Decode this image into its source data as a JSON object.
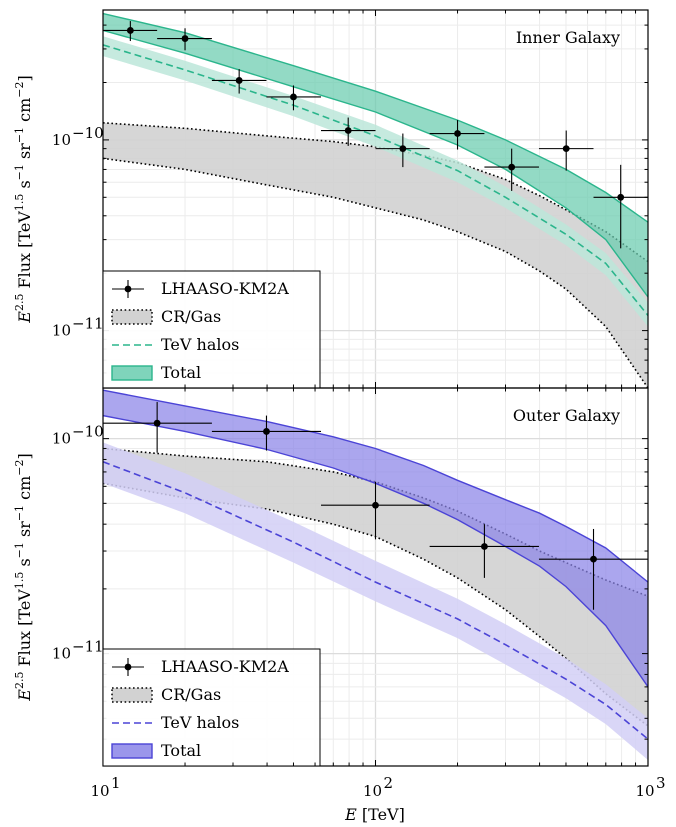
{
  "chart_data": [
    {
      "type": "line",
      "title": "Inner Galaxy",
      "xlabel": "E [TeV]",
      "ylabel": "E^2.5 Flux [TeV^1.5 s^-1 sr^-1 cm^-2]",
      "xscale": "log",
      "yscale": "log",
      "xlim": [
        10,
        1000
      ],
      "ylim": [
        5e-12,
        4.8e-10
      ],
      "grid": true,
      "legend_position": "lower-left",
      "colors": {
        "fill": "#69CCAF",
        "edge": "#2BB58C",
        "halo_band": "#BCE6D9",
        "crgas_fill": "#D2D2D2"
      },
      "legend": [
        "LHAASO-KM2A",
        "CR/Gas",
        "TeV halos",
        "Total"
      ],
      "data_points": {
        "name": "LHAASO-KM2A",
        "x": [
          12.6,
          20,
          31.6,
          50,
          79.4,
          126,
          200,
          316,
          501,
          794
        ],
        "y": [
          3.75e-10,
          3.4e-10,
          2.05e-10,
          1.68e-10,
          1.12e-10,
          9e-11,
          1.08e-10,
          7.2e-11,
          9e-11,
          5e-11
        ],
        "x_lo": [
          10,
          15.8,
          25.1,
          39.8,
          63.1,
          100,
          158,
          251,
          398,
          631
        ],
        "x_hi": [
          15.8,
          25.1,
          39.8,
          63.1,
          100,
          158,
          251,
          398,
          631,
          1000
        ],
        "y_lo": [
          3.3e-10,
          2.95e-10,
          1.75e-10,
          1.43e-10,
          9.3e-11,
          7.2e-11,
          8.9e-11,
          5.4e-11,
          6.9e-11,
          2.7e-11
        ],
        "y_hi": [
          4.2e-10,
          3.85e-10,
          2.35e-10,
          1.93e-10,
          1.31e-10,
          1.08e-10,
          1.27e-10,
          9e-11,
          1.12e-10,
          7.4e-11
        ]
      },
      "cr_gas_band": {
        "name": "CR/Gas",
        "x": [
          10,
          20,
          40,
          70,
          100,
          150,
          200,
          300,
          400,
          500,
          700,
          1000
        ],
        "upper": [
          1.23e-10,
          1.15e-10,
          1.05e-10,
          9.8e-11,
          9.2e-11,
          8.3e-11,
          7.6e-11,
          6.2e-11,
          5.1e-11,
          4.3e-11,
          3.3e-11,
          2.3e-11
        ],
        "lower": [
          8e-11,
          7e-11,
          5.8e-11,
          5e-11,
          4.4e-11,
          3.8e-11,
          3.3e-11,
          2.6e-11,
          2.05e-11,
          1.65e-11,
          1.05e-11,
          5e-12
        ]
      },
      "tev_halos": {
        "name": "TeV halos",
        "x": [
          10,
          20,
          50,
          100,
          200,
          300,
          500,
          700,
          1000
        ],
        "y": [
          3.15e-10,
          2.33e-10,
          1.52e-10,
          1.05e-10,
          6.9e-11,
          5e-11,
          3.2e-11,
          2.25e-11,
          1.2e-11
        ],
        "upper": [
          3.5e-10,
          2.6e-10,
          1.7e-10,
          1.2e-10,
          7.8e-11,
          5.7e-11,
          3.6e-11,
          2.55e-11,
          1.4e-11
        ],
        "lower": [
          2.75e-10,
          2.05e-10,
          1.33e-10,
          9.2e-11,
          6e-11,
          4.4e-11,
          2.8e-11,
          1.95e-11,
          1.05e-11
        ]
      },
      "total_band": {
        "name": "Total",
        "x": [
          10,
          20,
          50,
          100,
          200,
          300,
          500,
          700,
          1000
        ],
        "upper": [
          4.6e-10,
          3.65e-10,
          2.45e-10,
          1.8e-10,
          1.27e-10,
          1e-10,
          7e-11,
          5.3e-11,
          3.7e-11
        ],
        "lower": [
          3.75e-10,
          2.85e-10,
          1.9e-10,
          1.4e-10,
          9.4e-11,
          7e-11,
          4.4e-11,
          3e-11,
          1.5e-11
        ]
      }
    },
    {
      "type": "line",
      "title": "Outer Galaxy",
      "xlabel": "E [TeV]",
      "ylabel": "E^2.5 Flux [TeV^1.5 s^-1 sr^-1 cm^-2]",
      "xscale": "log",
      "yscale": "log",
      "xlim": [
        10,
        1000
      ],
      "ylim": [
        3e-12,
        1.72e-10
      ],
      "grid": true,
      "legend_position": "lower-left",
      "colors": {
        "fill": "#8A84E8",
        "edge": "#4B44D6",
        "halo_band": "#D2CFF6",
        "crgas_fill": "#D2D2D2"
      },
      "legend": [
        "LHAASO-KM2A",
        "CR/Gas",
        "TeV halos",
        "Total"
      ],
      "data_points": {
        "name": "LHAASO-KM2A",
        "x": [
          15.8,
          39.8,
          100,
          251,
          631
        ],
        "y": [
          1.18e-10,
          1.08e-10,
          4.9e-11,
          3.15e-11,
          2.75e-11
        ],
        "x_lo": [
          10,
          25.1,
          63.1,
          158,
          398
        ],
        "x_hi": [
          25.1,
          63.1,
          158,
          398,
          1000
        ],
        "y_lo": [
          8.6e-11,
          8.8e-11,
          3.4e-11,
          2.25e-11,
          1.6e-11
        ],
        "y_hi": [
          1.48e-10,
          1.28e-10,
          6.3e-11,
          4e-11,
          3.8e-11
        ]
      },
      "cr_gas_band": {
        "name": "CR/Gas",
        "x": [
          10,
          20,
          40,
          70,
          100,
          150,
          200,
          300,
          400,
          500,
          700,
          1000
        ],
        "upper": [
          9e-11,
          8.3e-11,
          7.8e-11,
          7e-11,
          6.3e-11,
          5.3e-11,
          4.6e-11,
          3.6e-11,
          3e-11,
          2.65e-11,
          2.2e-11,
          1.85e-11
        ],
        "lower": [
          6.2e-11,
          5.3e-11,
          4.7e-11,
          4e-11,
          3.5e-11,
          2.75e-11,
          2.25e-11,
          1.6e-11,
          1.2e-11,
          9.5e-12,
          6.5e-12,
          4.6e-12
        ]
      },
      "tev_halos": {
        "name": "TeV halos",
        "x": [
          10,
          20,
          50,
          100,
          200,
          300,
          500,
          700,
          1000
        ],
        "y": [
          7.8e-11,
          5.6e-11,
          3.3e-11,
          2.15e-11,
          1.45e-11,
          1.1e-11,
          7.6e-12,
          5.8e-12,
          4e-12
        ],
        "upper": [
          9.6e-11,
          6.9e-11,
          4.1e-11,
          2.7e-11,
          1.8e-11,
          1.37e-11,
          9.5e-12,
          7.2e-12,
          5e-12
        ],
        "lower": [
          6.2e-11,
          4.5e-11,
          2.65e-11,
          1.75e-11,
          1.18e-11,
          8.9e-12,
          6.2e-12,
          4.7e-12,
          3.2e-12
        ]
      },
      "total_band": {
        "name": "Total",
        "x": [
          10,
          20,
          40,
          70,
          100,
          150,
          200,
          300,
          400,
          500,
          700,
          1000
        ],
        "upper": [
          1.68e-10,
          1.42e-10,
          1.2e-10,
          1.02e-10,
          9e-11,
          7.5e-11,
          6.4e-11,
          5.2e-11,
          4.5e-11,
          3.9e-11,
          3.1e-11,
          2.15e-11
        ],
        "lower": [
          1.28e-10,
          1.08e-10,
          8.9e-11,
          7.3e-11,
          6.2e-11,
          5e-11,
          4.2e-11,
          3.15e-11,
          2.55e-11,
          2.05e-11,
          1.35e-11,
          7e-12
        ]
      }
    }
  ],
  "axes": {
    "x_tick_labels": [
      "10",
      "10",
      "10"
    ],
    "x_tick_exponents": [
      "1",
      "2",
      "3"
    ],
    "y_tick_label": "10",
    "y_tick_exponents": [
      "−10",
      "−11"
    ],
    "xlabel_italic": "E",
    "xlabel_rest": " [TeV]",
    "ylabel_base": "E",
    "ylabel_exp": "2.5",
    "ylabel_flux": " Flux [TeV",
    "ylabel_exp2": "1.5",
    "ylabel_s": " s",
    "ylabel_exp3": "−1",
    "ylabel_sr": " sr",
    "ylabel_exp4": "−1",
    "ylabel_cm": " cm",
    "ylabel_exp5": "−2",
    "ylabel_close": "]"
  }
}
